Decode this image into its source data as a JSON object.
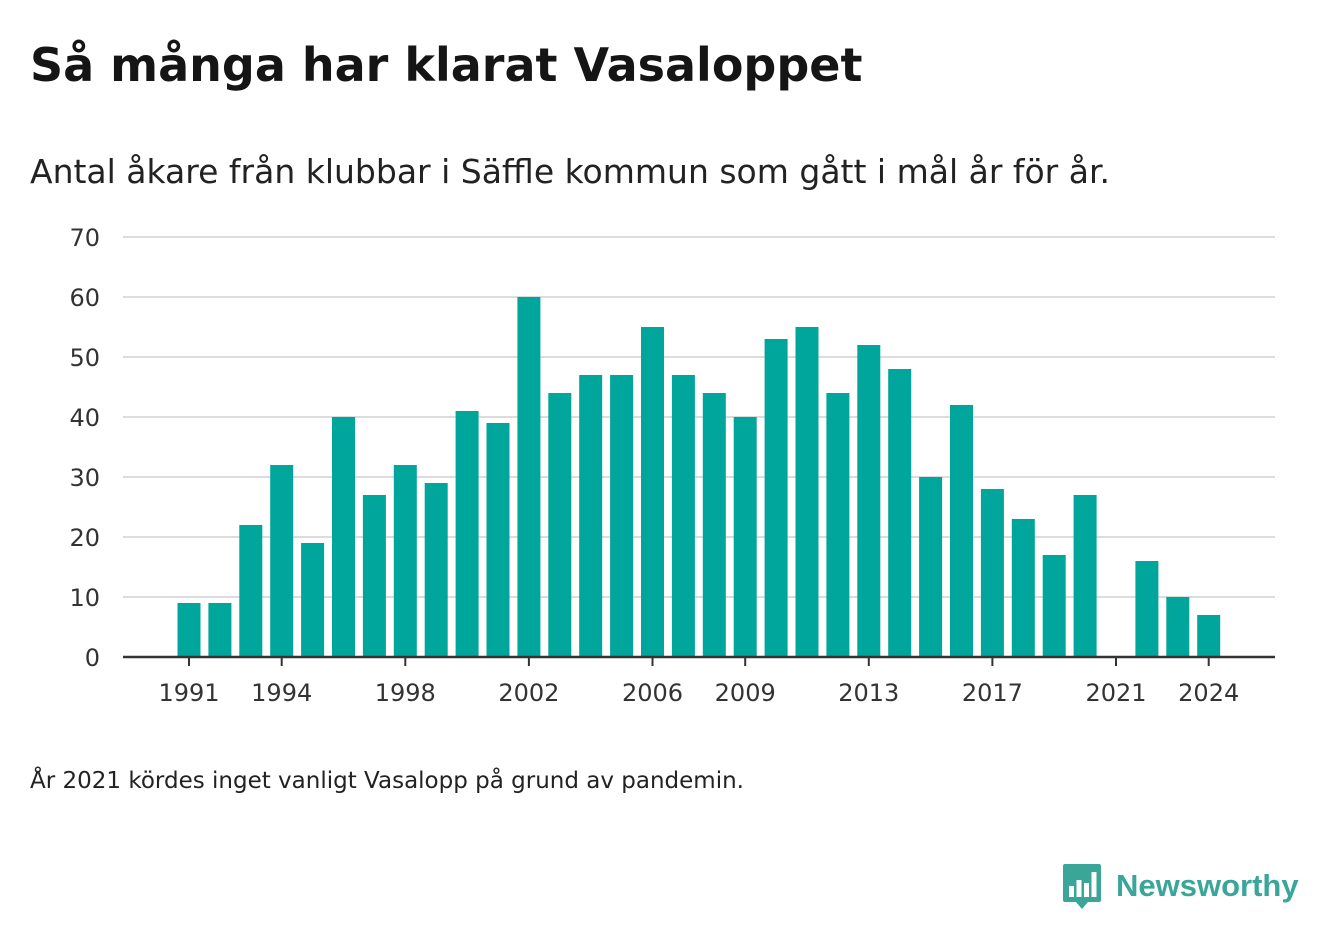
{
  "header": {
    "title": "Så många har klarat Vasaloppet",
    "subtitle": "Antal åkare från klubbar i Säffle kommun som gått i mål år för år."
  },
  "footer": {
    "note": "År 2021 kördes inget vanligt Vasalopp på grund av pandemin.",
    "brand": "Newsworthy",
    "brand_icon": "bar-chart-speech-bubble-icon"
  },
  "colors": {
    "bar": "#00a59b",
    "brand": "#3aa69a",
    "grid": "#dcdcdc",
    "axis": "#333333",
    "tick_text": "#333333"
  },
  "chart_data": {
    "type": "bar",
    "title": "Så många har klarat Vasaloppet",
    "subtitle": "Antal åkare från klubbar i Säffle kommun som gått i mål år för år.",
    "xlabel": "",
    "ylabel": "",
    "categories": [
      1991,
      1992,
      1993,
      1994,
      1995,
      1996,
      1997,
      1998,
      1999,
      2000,
      2001,
      2002,
      2003,
      2004,
      2005,
      2006,
      2007,
      2008,
      2009,
      2010,
      2011,
      2012,
      2013,
      2014,
      2015,
      2016,
      2017,
      2018,
      2019,
      2020,
      2021,
      2022,
      2023,
      2024
    ],
    "values": [
      9,
      9,
      22,
      32,
      19,
      40,
      27,
      32,
      29,
      41,
      39,
      60,
      44,
      47,
      47,
      55,
      47,
      44,
      40,
      53,
      55,
      44,
      52,
      48,
      30,
      42,
      28,
      23,
      17,
      27,
      null,
      16,
      10,
      7
    ],
    "x_tick_labels": [
      "1991",
      "1994",
      "1998",
      "2002",
      "2006",
      "2009",
      "2013",
      "2017",
      "2021",
      "2024"
    ],
    "ylim": [
      0,
      70
    ],
    "y_ticks": [
      0,
      10,
      20,
      30,
      40,
      50,
      60,
      70
    ],
    "grid": true,
    "legend": "none"
  }
}
